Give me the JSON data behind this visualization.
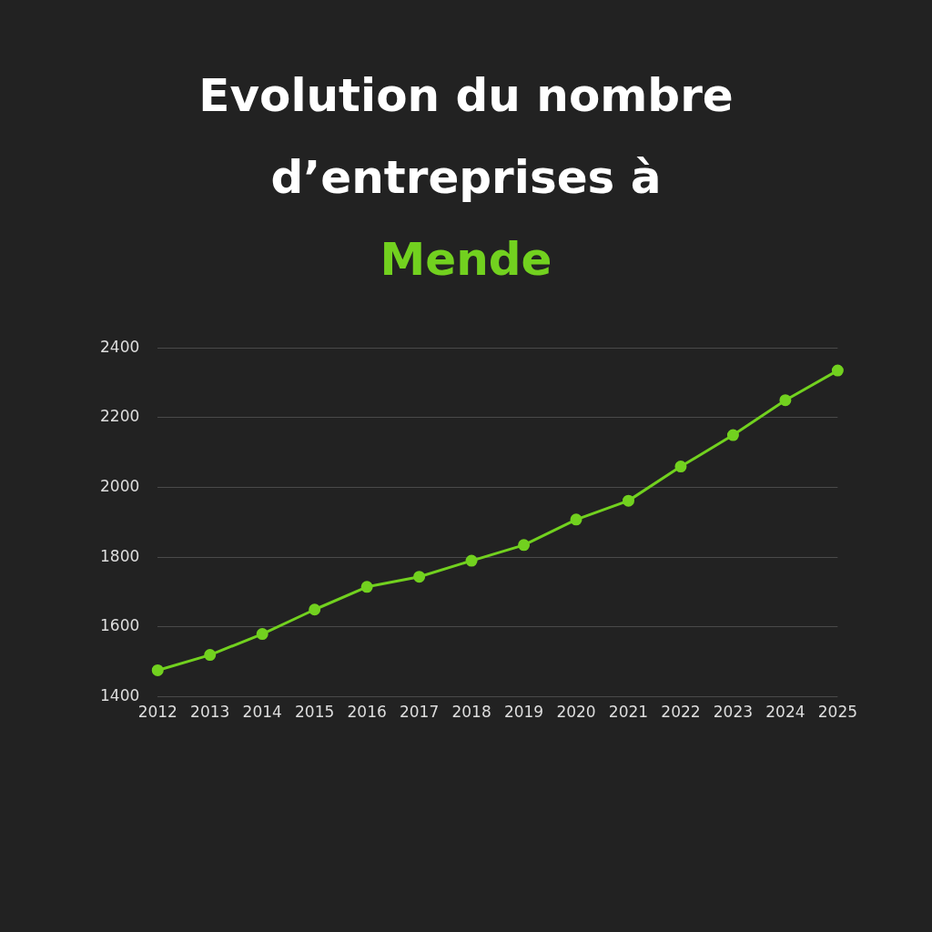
{
  "chart_data": {
    "type": "line",
    "title": "Evolution du nombre d’entreprises à",
    "subtitle": "Mende",
    "categories": [
      "2012",
      "2013",
      "2014",
      "2015",
      "2016",
      "2017",
      "2018",
      "2019",
      "2020",
      "2021",
      "2022",
      "2023",
      "2024",
      "2025"
    ],
    "series": [
      {
        "color": "#72d11f",
        "values": [
          1476,
          1520,
          1580,
          1650,
          1715,
          1744,
          1790,
          1835,
          1908,
          1962,
          2060,
          2150,
          2250,
          2335
        ]
      }
    ],
    "ylim": [
      1400,
      2400
    ],
    "yticks": [
      1400,
      1600,
      1800,
      2000,
      2200,
      2400
    ],
    "grid": "y",
    "legend": false,
    "marker": "circle",
    "line_style": "solid"
  }
}
